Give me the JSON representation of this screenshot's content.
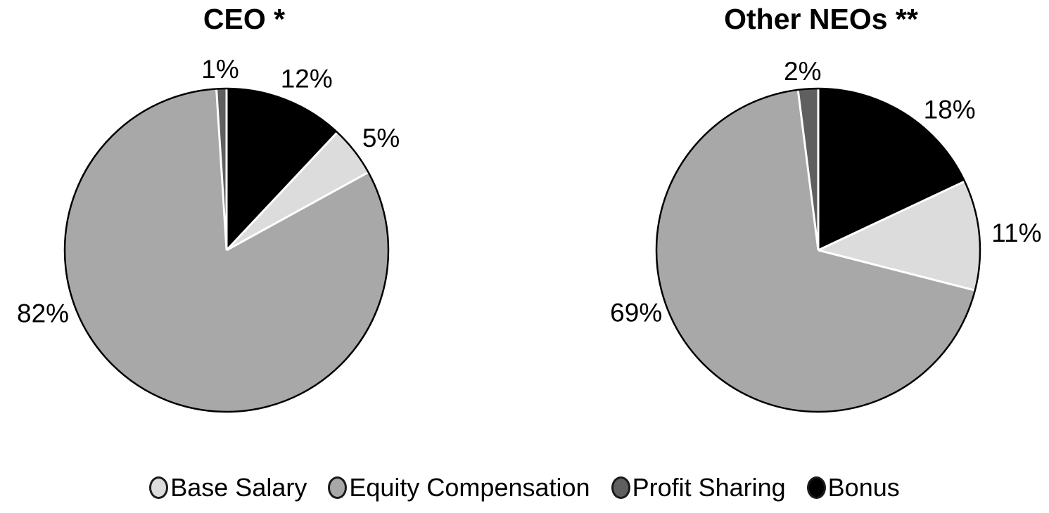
{
  "chart_data": [
    {
      "type": "pie",
      "title": "CEO *",
      "unit": "%",
      "start_angle_deg": 0,
      "direction": "clockwise",
      "slices": [
        {
          "label": "Bonus",
          "value": 12,
          "color": "#000000",
          "data_label": "12%",
          "label_angle": 25,
          "label_r": 1.17
        },
        {
          "label": "Base Salary",
          "value": 5,
          "color": "#dcdcdc",
          "data_label": "5%",
          "label_angle": 54,
          "label_r": 1.18
        },
        {
          "label": "Equity Compensation",
          "value": 82,
          "color": "#a8a8a8",
          "data_label": "82%",
          "label_angle": 251,
          "label_r": 1.2
        },
        {
          "label": "Profit Sharing",
          "value": 1,
          "color": "#5f5f5f",
          "data_label": "1%",
          "label_angle": 358,
          "label_r": 1.12
        }
      ]
    },
    {
      "type": "pie",
      "title": "Other NEOs **",
      "unit": "%",
      "start_angle_deg": 0,
      "direction": "clockwise",
      "slices": [
        {
          "label": "Bonus",
          "value": 18,
          "color": "#000000",
          "data_label": "18%",
          "label_angle": 43,
          "label_r": 1.19
        },
        {
          "label": "Base Salary",
          "value": 11,
          "color": "#dcdcdc",
          "data_label": "11%",
          "label_angle": 85,
          "label_r": 1.23
        },
        {
          "label": "Equity Compensation",
          "value": 69,
          "color": "#a8a8a8",
          "data_label": "69%",
          "label_angle": 251,
          "label_r": 1.19
        },
        {
          "label": "Profit Sharing",
          "value": 2,
          "color": "#5f5f5f",
          "data_label": "2%",
          "label_angle": 355,
          "label_r": 1.11
        }
      ]
    }
  ],
  "legend": {
    "position": "bottom",
    "items": [
      {
        "label": "Base Salary",
        "color": "#dcdcdc"
      },
      {
        "label": "Equity Compensation",
        "color": "#a8a8a8"
      },
      {
        "label": "Profit Sharing",
        "color": "#5f5f5f"
      },
      {
        "label": "Bonus",
        "color": "#000000"
      }
    ]
  },
  "styles": {
    "background": "#ffffff",
    "slice_separator_color": "#ffffff",
    "pie_outline_color": "#000000",
    "text_color": "#000000"
  }
}
